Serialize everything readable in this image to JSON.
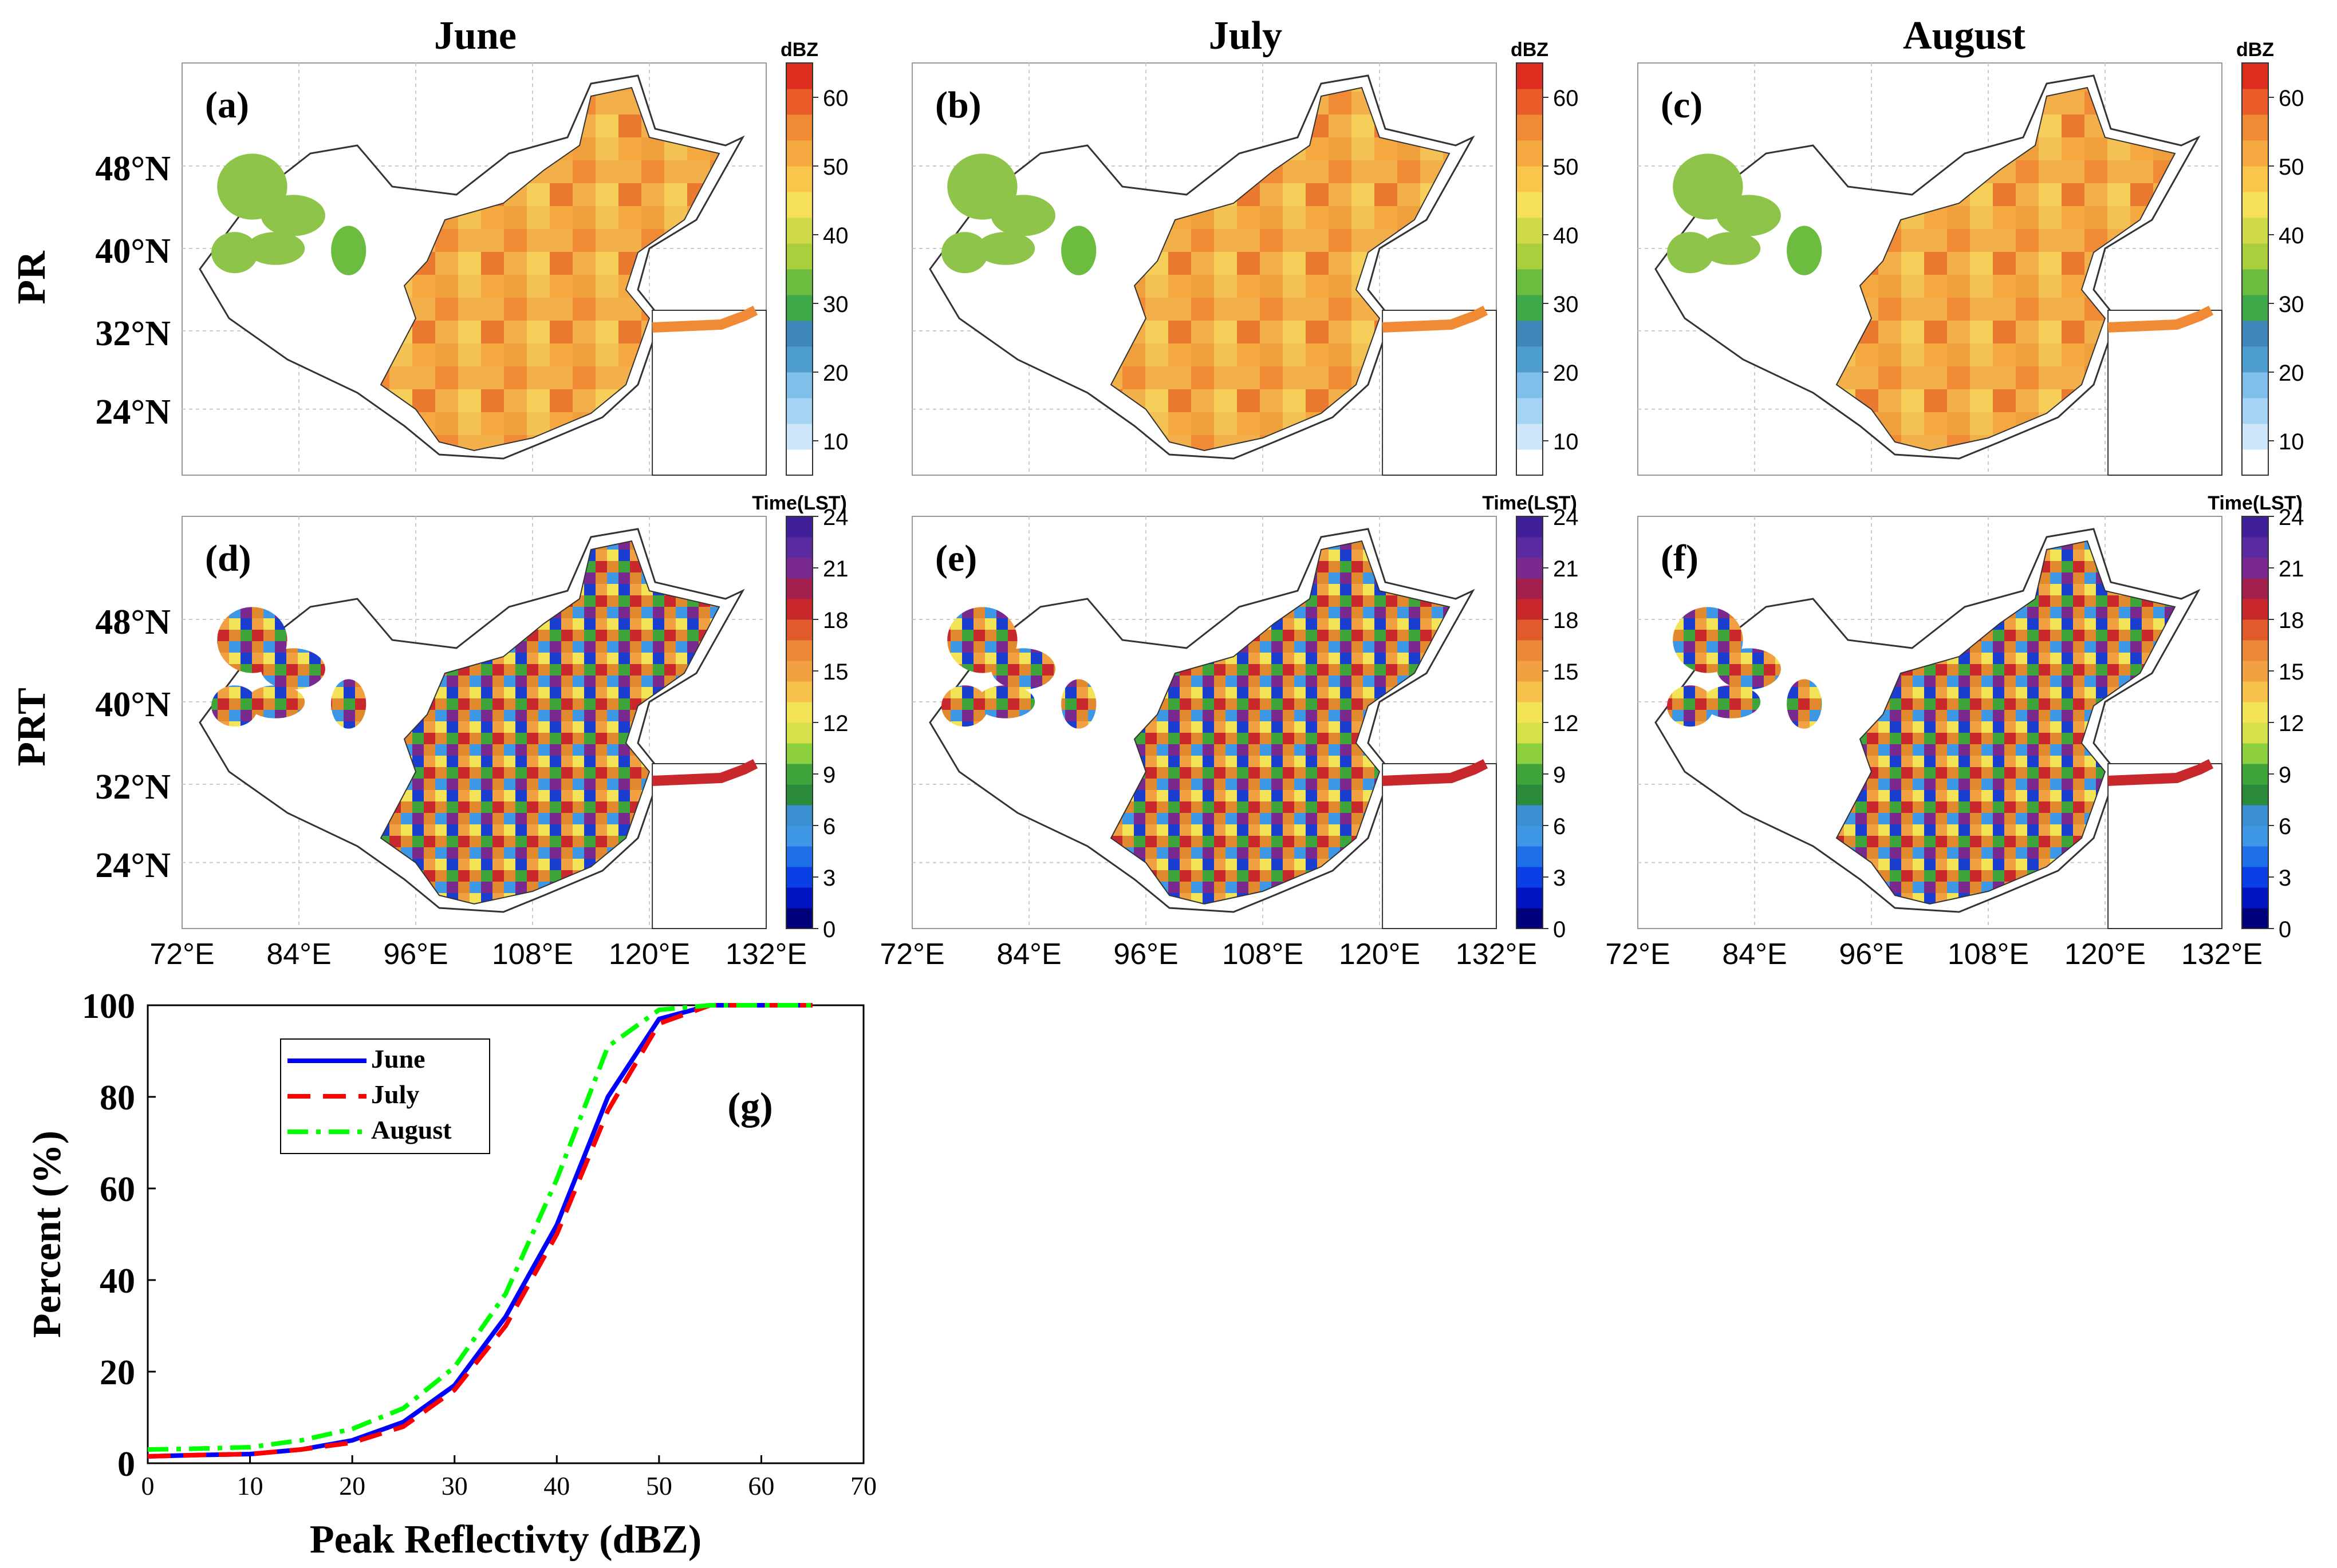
{
  "figure": {
    "column_titles": [
      "June",
      "July",
      "August"
    ],
    "row_labels": [
      "PR",
      "PRT"
    ],
    "lat_labels": [
      "48°N",
      "40°N",
      "32°N",
      "24°N"
    ],
    "lon_labels": [
      "72°E",
      "84°E",
      "96°E",
      "108°E",
      "120°E",
      "132°E"
    ],
    "panel_labels": [
      "(a)",
      "(b)",
      "(c)",
      "(d)",
      "(e)",
      "(f)"
    ]
  },
  "colorbars": {
    "pr": {
      "unit": "dBZ",
      "ticks": [
        "10",
        "20",
        "30",
        "40",
        "50",
        "60"
      ],
      "tick_values": [
        10,
        20,
        30,
        40,
        50,
        60
      ],
      "range": [
        5,
        65
      ],
      "colors": [
        "#ffffff",
        "#cde6fa",
        "#a5d3f4",
        "#7fbfe9",
        "#4f9ed0",
        "#3f86b9",
        "#3ea848",
        "#6cbc3f",
        "#a9cf3c",
        "#cfd94a",
        "#f4e05a",
        "#f9c64b",
        "#f5a83f",
        "#f08a35",
        "#ea5c2a",
        "#dd2d1f"
      ]
    },
    "prt": {
      "unit": "Time(LST)",
      "ticks": [
        "0",
        "3",
        "6",
        "9",
        "12",
        "15",
        "18",
        "21",
        "24"
      ],
      "tick_values": [
        0,
        3,
        6,
        9,
        12,
        15,
        18,
        21,
        24
      ],
      "range": [
        0,
        24
      ],
      "colors": [
        "#00007a",
        "#0014c2",
        "#0a3fe6",
        "#1f6fe8",
        "#3d97e4",
        "#3a8fd0",
        "#2a8a3a",
        "#3fa53a",
        "#8ccf3f",
        "#d6e04a",
        "#f3e356",
        "#f6c24c",
        "#f2a142",
        "#ec8838",
        "#e05a2c",
        "#c8282c",
        "#a31f4d",
        "#7a2a8e",
        "#5a2aa0",
        "#3f2098"
      ]
    }
  },
  "colors": {
    "june": "#0000ff",
    "july": "#ff0000",
    "august": "#00ff00",
    "border": "#333333",
    "grid": "#cccccc"
  },
  "chart_data": {
    "type": "line",
    "title": "",
    "panel_label": "(g)",
    "xlabel": "Peak Reflectivty (dBZ)",
    "ylabel": "Percent (%)",
    "xlim": [
      0,
      70
    ],
    "ylim": [
      0,
      100
    ],
    "xticks": [
      0,
      10,
      20,
      30,
      40,
      50,
      60,
      70
    ],
    "yticks": [
      0,
      20,
      40,
      60,
      80,
      100
    ],
    "legend_position": "upper-left",
    "x": [
      0,
      5,
      10,
      15,
      20,
      25,
      30,
      35,
      40,
      45,
      50,
      55,
      60,
      65
    ],
    "series": [
      {
        "name": "June",
        "style": "solid",
        "color": "#0000ff",
        "values": [
          1.5,
          1.8,
          2,
          3,
          5,
          9,
          17,
          32,
          52,
          80,
          97,
          100,
          100,
          100
        ]
      },
      {
        "name": "July",
        "style": "dashed",
        "color": "#ff0000",
        "values": [
          1.5,
          1.8,
          2,
          3,
          4.5,
          8,
          16,
          30,
          50,
          77,
          96,
          100,
          100,
          100
        ]
      },
      {
        "name": "August",
        "style": "dashdot",
        "color": "#00ff00",
        "values": [
          3,
          3.2,
          3.5,
          5,
          7.5,
          12,
          21,
          37,
          62,
          91,
          99,
          100,
          100,
          100
        ]
      }
    ]
  }
}
